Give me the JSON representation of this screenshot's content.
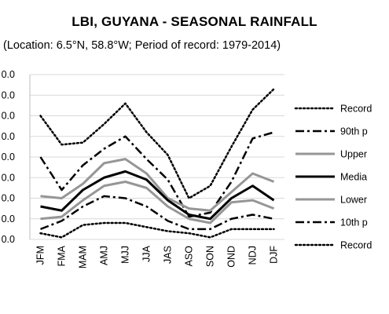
{
  "chart_data": {
    "type": "line",
    "title": "LBI, GUYANA - SEASONAL RAINFALL",
    "subtitle": "(Location: 6.5°N, 58.8°W; Period of record: 1979-2014)",
    "categories": [
      "JFM",
      "FMA",
      "MAM",
      "AMJ",
      "MJJ",
      "JJA",
      "JAS",
      "ASO",
      "SON",
      "OND",
      "NDJ",
      "DJF"
    ],
    "y_tick_labels": [
      "0.0",
      "0.0",
      "0.0",
      "0.0",
      "0.0",
      "0.0",
      "0.0",
      "0.0",
      "0.0"
    ],
    "ylim": [
      0,
      8
    ],
    "grid": "horizontal",
    "legend_position": "right",
    "series": [
      {
        "name": "Record",
        "style": "dotted",
        "color": "#000000",
        "values": [
          6.0,
          4.6,
          4.7,
          5.6,
          6.6,
          5.2,
          4.1,
          2.0,
          2.6,
          4.5,
          6.3,
          7.3
        ]
      },
      {
        "name": "90th p",
        "style": "dashdot",
        "color": "#000000",
        "values": [
          4.0,
          2.4,
          3.6,
          4.4,
          5.0,
          3.9,
          2.9,
          1.1,
          1.3,
          2.8,
          4.9,
          5.2
        ]
      },
      {
        "name": "Upper",
        "style": "solid",
        "color": "#969696",
        "values": [
          2.1,
          2.0,
          2.7,
          3.7,
          3.9,
          3.2,
          2.0,
          1.5,
          1.4,
          2.3,
          3.2,
          2.8
        ]
      },
      {
        "name": "Media",
        "style": "solid",
        "color": "#000000",
        "values": [
          1.6,
          1.4,
          2.4,
          3.0,
          3.3,
          2.9,
          1.9,
          1.2,
          1.0,
          2.0,
          2.6,
          1.9
        ]
      },
      {
        "name": "Lower",
        "style": "solid",
        "color": "#969696",
        "values": [
          1.0,
          1.1,
          1.9,
          2.6,
          2.8,
          2.5,
          1.6,
          1.0,
          0.8,
          1.8,
          1.9,
          1.5
        ]
      },
      {
        "name": "10th p",
        "style": "dashdot",
        "color": "#000000",
        "values": [
          0.5,
          0.9,
          1.6,
          2.1,
          2.0,
          1.6,
          0.9,
          0.5,
          0.5,
          1.0,
          1.2,
          1.0
        ]
      },
      {
        "name": "Record",
        "style": "dotted",
        "color": "#000000",
        "values": [
          0.3,
          0.1,
          0.7,
          0.8,
          0.8,
          0.6,
          0.4,
          0.3,
          0.1,
          0.5,
          0.5,
          0.5
        ]
      }
    ]
  }
}
